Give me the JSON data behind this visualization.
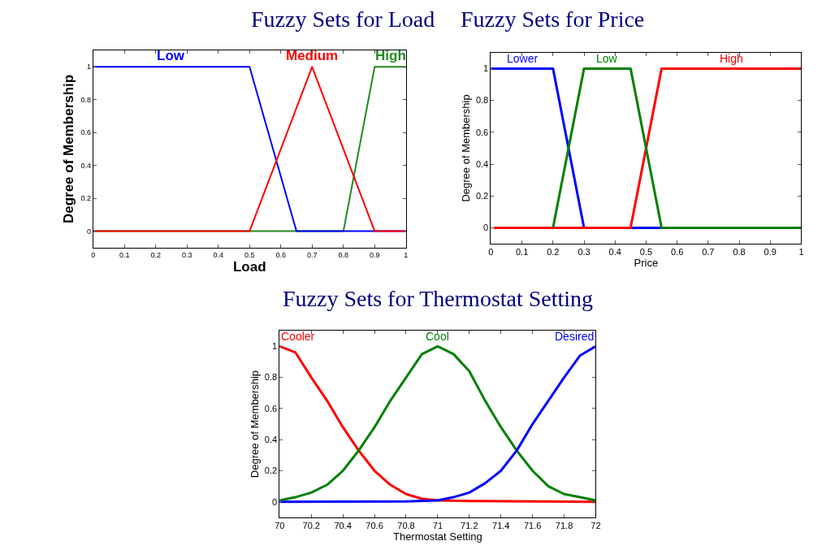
{
  "chart_data": [
    {
      "type": "line",
      "title": "Fuzzy Sets for Load",
      "xlabel": "Load",
      "ylabel": "Degree of Membership",
      "xlim": [
        0,
        1
      ],
      "ylim": [
        -0.1,
        1.1
      ],
      "xticks": [
        0,
        0.1,
        0.2,
        0.3,
        0.4,
        0.5,
        0.6,
        0.7,
        0.8,
        0.9,
        1
      ],
      "yticks": [
        0,
        0.2,
        0.4,
        0.6,
        0.8,
        1
      ],
      "grid": false,
      "legend": false,
      "marker": "none",
      "line_style": "solid",
      "series": [
        {
          "name": "High",
          "color": "#228b22",
          "x": [
            0,
            0.8,
            0.9,
            1
          ],
          "values": [
            0,
            0,
            1,
            1
          ]
        },
        {
          "name": "Low",
          "color": "#0000ff",
          "x": [
            0,
            0.5,
            0.65,
            1
          ],
          "values": [
            1,
            1,
            0,
            0
          ]
        },
        {
          "name": "Medium",
          "color": "#ff0000",
          "x": [
            0,
            0.5,
            0.7,
            0.9,
            1
          ],
          "values": [
            0,
            0,
            1,
            0,
            0
          ]
        }
      ]
    },
    {
      "type": "line",
      "title": "Fuzzy Sets for Price",
      "xlabel": "Price",
      "ylabel": "Degree of Membership",
      "xlim": [
        0,
        1
      ],
      "ylim": [
        -0.1,
        1.1
      ],
      "xticks": [
        0,
        0.1,
        0.2,
        0.3,
        0.4,
        0.5,
        0.6,
        0.7,
        0.8,
        0.9,
        1
      ],
      "yticks": [
        0,
        0.2,
        0.4,
        0.6,
        0.8,
        1
      ],
      "grid": false,
      "legend": false,
      "marker": "none",
      "line_style": "solid",
      "series": [
        {
          "name": "Lower",
          "color": "#0000ff",
          "x": [
            0,
            0.2,
            0.3,
            1
          ],
          "values": [
            1,
            1,
            0,
            0
          ]
        },
        {
          "name": "High",
          "color": "#ff0000",
          "x": [
            0.01,
            0.45,
            0.55,
            1
          ],
          "values": [
            0,
            0,
            1,
            1
          ]
        },
        {
          "name": "Low",
          "color": "#008000",
          "x": [
            0.2,
            0.3,
            0.45,
            0.55,
            1
          ],
          "values": [
            0,
            1,
            1,
            0,
            0
          ]
        }
      ]
    },
    {
      "type": "line",
      "title": "Fuzzy Sets for Thermostat Setting",
      "xlabel": "Thermostat Setting",
      "ylabel": "Degree of Membership",
      "xlim": [
        70,
        72
      ],
      "ylim": [
        -0.1,
        1.1
      ],
      "xticks": [
        70,
        70.2,
        70.4,
        70.6,
        70.8,
        71,
        71.2,
        71.4,
        71.6,
        71.8,
        72
      ],
      "yticks": [
        0,
        0.2,
        0.4,
        0.6,
        0.8,
        1
      ],
      "grid": false,
      "legend": false,
      "marker": "none",
      "line_style": "solid",
      "series": [
        {
          "name": "Cooler",
          "color": "#ff0000",
          "x": [
            70,
            70.1,
            70.2,
            70.3,
            70.4,
            70.5,
            70.6,
            70.7,
            70.8,
            70.9,
            71,
            71.2,
            71.6,
            72
          ],
          "values": [
            1,
            0.96,
            0.8,
            0.65,
            0.48,
            0.33,
            0.2,
            0.11,
            0.05,
            0.02,
            0.01,
            0.005,
            0.003,
            0
          ]
        },
        {
          "name": "Cool",
          "color": "#008000",
          "x": [
            70,
            70.1,
            70.2,
            70.3,
            70.4,
            70.5,
            70.6,
            70.7,
            70.8,
            70.9,
            71,
            71.1,
            71.2,
            71.3,
            71.4,
            71.5,
            71.6,
            71.7,
            71.8,
            71.9,
            72
          ],
          "values": [
            0.01,
            0.03,
            0.06,
            0.11,
            0.2,
            0.33,
            0.48,
            0.65,
            0.8,
            0.95,
            1,
            0.95,
            0.84,
            0.65,
            0.48,
            0.33,
            0.2,
            0.1,
            0.05,
            0.03,
            0.01
          ]
        },
        {
          "name": "Desired",
          "color": "#0000ff",
          "x": [
            70,
            70.8,
            71,
            71.1,
            71.2,
            71.3,
            71.4,
            71.5,
            71.6,
            71.7,
            71.8,
            71.9,
            72
          ],
          "values": [
            0,
            0.003,
            0.01,
            0.03,
            0.06,
            0.12,
            0.2,
            0.33,
            0.5,
            0.65,
            0.8,
            0.94,
            1
          ]
        }
      ]
    }
  ]
}
